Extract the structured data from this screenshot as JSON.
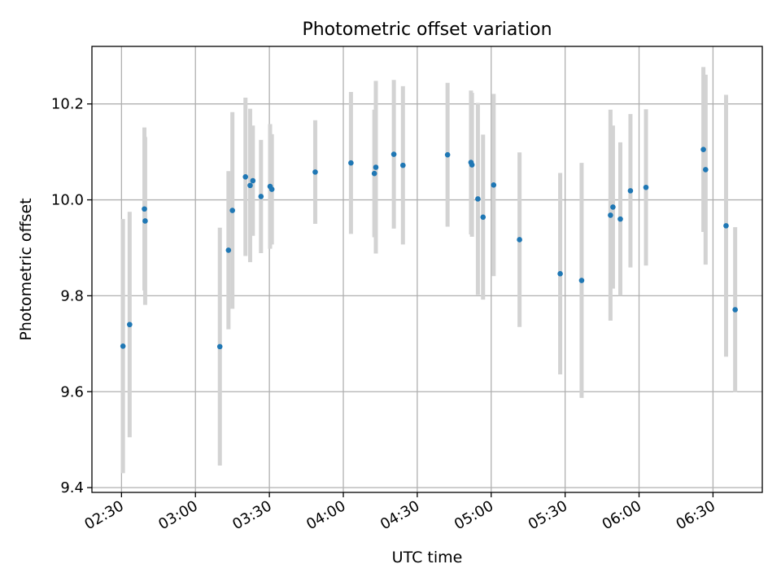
{
  "chart_data": {
    "type": "scatter",
    "title": "Photometric offset variation",
    "xlabel": "UTC time",
    "ylabel": "Photometric offset",
    "x_ticks": [
      "02:30",
      "03:00",
      "03:30",
      "04:00",
      "04:30",
      "05:00",
      "05:30",
      "06:00",
      "06:30"
    ],
    "y_ticks": [
      "9.4",
      "9.6",
      "9.8",
      "10.0",
      "10.2"
    ],
    "xlim": [
      "02:18",
      "06:50"
    ],
    "ylim": [
      9.39,
      10.32
    ],
    "grid": true,
    "colors": {
      "points": "#1f77b4",
      "error_bars": "#d3d3d3"
    },
    "points": [
      {
        "x": "02:30:36",
        "y": 9.695,
        "yerr": 0.265
      },
      {
        "x": "02:33:18",
        "y": 9.74,
        "yerr": 0.235
      },
      {
        "x": "02:39:18",
        "y": 9.981,
        "yerr": 0.17
      },
      {
        "x": "02:39:36",
        "y": 9.956,
        "yerr": 0.175
      },
      {
        "x": "03:09:54",
        "y": 9.694,
        "yerr": 0.248
      },
      {
        "x": "03:13:24",
        "y": 9.895,
        "yerr": 0.165
      },
      {
        "x": "03:15:00",
        "y": 9.978,
        "yerr": 0.205
      },
      {
        "x": "03:20:18",
        "y": 10.048,
        "yerr": 0.165
      },
      {
        "x": "03:22:12",
        "y": 10.03,
        "yerr": 0.16
      },
      {
        "x": "03:23:18",
        "y": 10.04,
        "yerr": 0.115
      },
      {
        "x": "03:26:36",
        "y": 10.007,
        "yerr": 0.118
      },
      {
        "x": "03:30:18",
        "y": 10.028,
        "yerr": 0.13
      },
      {
        "x": "03:31:00",
        "y": 10.022,
        "yerr": 0.115
      },
      {
        "x": "03:48:36",
        "y": 10.058,
        "yerr": 0.108
      },
      {
        "x": "04:03:06",
        "y": 10.077,
        "yerr": 0.148
      },
      {
        "x": "04:12:36",
        "y": 10.055,
        "yerr": 0.133
      },
      {
        "x": "04:13:12",
        "y": 10.068,
        "yerr": 0.18
      },
      {
        "x": "04:20:30",
        "y": 10.095,
        "yerr": 0.155
      },
      {
        "x": "04:24:12",
        "y": 10.072,
        "yerr": 0.165
      },
      {
        "x": "04:42:18",
        "y": 10.094,
        "yerr": 0.15
      },
      {
        "x": "04:51:48",
        "y": 10.078,
        "yerr": 0.15
      },
      {
        "x": "04:52:12",
        "y": 10.073,
        "yerr": 0.15
      },
      {
        "x": "04:54:36",
        "y": 10.002,
        "yerr": 0.2
      },
      {
        "x": "04:56:42",
        "y": 9.964,
        "yerr": 0.172
      },
      {
        "x": "05:01:00",
        "y": 10.031,
        "yerr": 0.19
      },
      {
        "x": "05:11:30",
        "y": 9.917,
        "yerr": 0.182
      },
      {
        "x": "05:28:00",
        "y": 9.846,
        "yerr": 0.21
      },
      {
        "x": "05:36:42",
        "y": 9.832,
        "yerr": 0.245
      },
      {
        "x": "05:48:24",
        "y": 9.968,
        "yerr": 0.22
      },
      {
        "x": "05:49:24",
        "y": 9.985,
        "yerr": 0.17
      },
      {
        "x": "05:52:24",
        "y": 9.96,
        "yerr": 0.16
      },
      {
        "x": "05:56:30",
        "y": 10.019,
        "yerr": 0.16
      },
      {
        "x": "06:02:48",
        "y": 10.026,
        "yerr": 0.163
      },
      {
        "x": "06:26:06",
        "y": 10.105,
        "yerr": 0.172
      },
      {
        "x": "06:27:00",
        "y": 10.063,
        "yerr": 0.198
      },
      {
        "x": "06:35:18",
        "y": 9.946,
        "yerr": 0.273
      },
      {
        "x": "06:39:00",
        "y": 9.771,
        "yerr": 0.172
      }
    ]
  }
}
